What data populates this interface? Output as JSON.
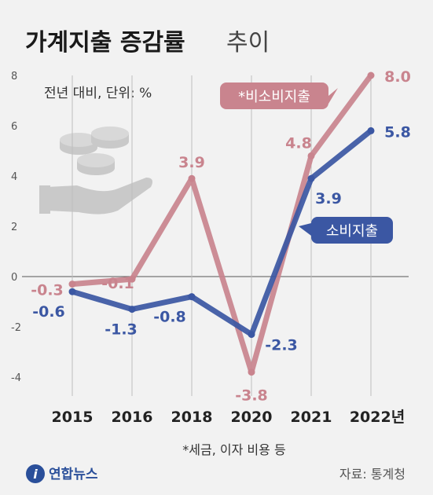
{
  "title": "가계지출 증감률",
  "title_sub": "추이",
  "unit_label": "전년 대비, 단위: %",
  "note": "*세금, 이자 비용 등",
  "source": "자료: 통계청",
  "logo": "연합뉴스",
  "colors": {
    "non_consumption": "#c9848e",
    "consumption": "#3b57a3"
  },
  "chart_data": {
    "type": "line",
    "categories": [
      "2015",
      "2016",
      "2018",
      "2020",
      "2021",
      "2022년"
    ],
    "ylim": [
      -4,
      8
    ],
    "yticks": [
      -4,
      -2,
      0,
      2,
      4,
      6,
      8
    ],
    "ytick_labels": [
      "-4",
      "-2",
      "0",
      "2",
      "4",
      "6",
      "8"
    ],
    "grid": false,
    "series": [
      {
        "name": "*비소비지출",
        "values": [
          -0.3,
          -0.1,
          3.9,
          -3.8,
          4.8,
          8.0
        ],
        "labels": [
          "-0.3",
          "-0.1",
          "3.9",
          "-3.8",
          "4.8",
          "8.0"
        ]
      },
      {
        "name": "소비지출",
        "values": [
          -0.6,
          -1.3,
          -0.8,
          -2.3,
          3.9,
          5.8
        ],
        "labels": [
          "-0.6",
          "-1.3",
          "-0.8",
          "-2.3",
          "3.9",
          "5.8"
        ]
      }
    ]
  }
}
